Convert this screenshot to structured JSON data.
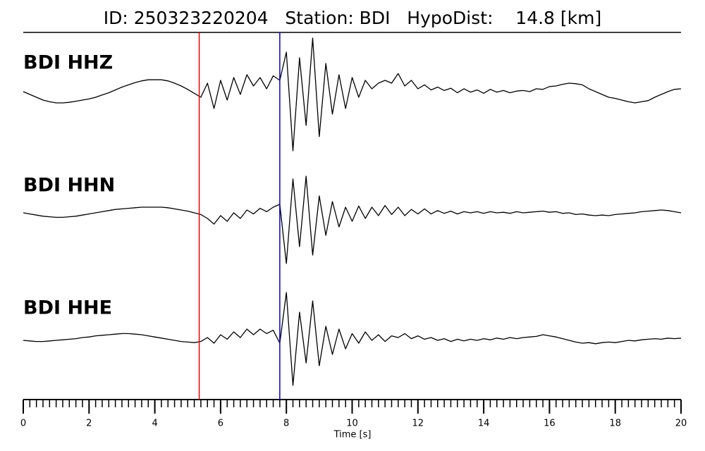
{
  "chart_data": {
    "type": "line",
    "title": "ID: 250323220204   Station: BDI   HypoDist:    14.8 [km]",
    "xlabel": "Time [s]",
    "xlim": [
      0,
      20
    ],
    "xticks": [
      0,
      2,
      4,
      6,
      8,
      10,
      12,
      14,
      16,
      18,
      20
    ],
    "xminorticks": [
      0,
      0.2,
      0.4,
      0.6,
      0.8,
      1,
      1.2,
      1.4,
      1.6,
      1.8,
      2,
      2.2,
      2.4,
      2.6,
      2.8,
      3,
      3.2,
      3.4,
      3.6,
      3.8,
      4,
      4.2,
      4.4,
      4.6,
      4.8,
      5,
      5.2,
      5.4,
      5.6,
      5.8,
      6,
      6.2,
      6.4,
      6.6,
      6.8,
      7,
      7.2,
      7.4,
      7.6,
      7.8,
      8,
      8.2,
      8.4,
      8.6,
      8.8,
      9,
      9.2,
      9.4,
      9.6,
      9.8,
      10,
      10.2,
      10.4,
      10.6,
      10.8,
      11,
      11.2,
      11.4,
      11.6,
      11.8,
      12,
      12.2,
      12.4,
      12.6,
      12.8,
      13,
      13.2,
      13.4,
      13.6,
      13.8,
      14,
      14.2,
      14.4,
      14.6,
      14.8,
      15,
      15.2,
      15.4,
      15.6,
      15.8,
      16,
      16.2,
      16.4,
      16.6,
      16.8,
      17,
      17.2,
      17.4,
      17.6,
      17.8,
      18,
      18.2,
      18.4,
      18.6,
      18.8,
      19,
      19.2,
      19.4,
      19.6,
      19.8,
      20
    ],
    "x": [
      0,
      0.2,
      0.4,
      0.6,
      0.8,
      1,
      1.2,
      1.4,
      1.6,
      1.8,
      2,
      2.2,
      2.4,
      2.6,
      2.8,
      3,
      3.2,
      3.4,
      3.6,
      3.8,
      4,
      4.2,
      4.4,
      4.6,
      4.8,
      5,
      5.2,
      5.4,
      5.6,
      5.8,
      6,
      6.2,
      6.4,
      6.6,
      6.8,
      7,
      7.2,
      7.4,
      7.6,
      7.8,
      8,
      8.2,
      8.4,
      8.6,
      8.8,
      9,
      9.2,
      9.4,
      9.6,
      9.8,
      10,
      10.2,
      10.4,
      10.6,
      10.8,
      11,
      11.2,
      11.4,
      11.6,
      11.8,
      12,
      12.2,
      12.4,
      12.6,
      12.8,
      13,
      13.2,
      13.4,
      13.6,
      13.8,
      14,
      14.2,
      14.4,
      14.6,
      14.8,
      15,
      15.2,
      15.4,
      15.6,
      15.8,
      16,
      16.2,
      16.4,
      16.6,
      16.8,
      17,
      17.2,
      17.4,
      17.6,
      17.8,
      18,
      18.2,
      18.4,
      18.6,
      18.8,
      19,
      19.2,
      19.4,
      19.6,
      19.8,
      20
    ],
    "label_color": "#4c9a00",
    "series": [
      {
        "name": "BDI HHZ",
        "color": "#000000",
        "values": [
          0,
          -0.05,
          -0.1,
          -0.15,
          -0.18,
          -0.2,
          -0.2,
          -0.19,
          -0.17,
          -0.15,
          -0.13,
          -0.1,
          -0.06,
          -0.02,
          0.03,
          0.08,
          0.12,
          0.16,
          0.19,
          0.21,
          0.21,
          0.21,
          0.19,
          0.15,
          0.1,
          0.04,
          -0.03,
          -0.1,
          0.15,
          -0.3,
          0.2,
          -0.15,
          0.25,
          -0.05,
          0.3,
          0.1,
          0.25,
          0.05,
          0.28,
          0.2,
          0.7,
          -1.05,
          0.6,
          -0.6,
          0.95,
          -0.8,
          0.5,
          -0.4,
          0.3,
          -0.3,
          0.25,
          -0.1,
          0.2,
          0.05,
          0.15,
          0.2,
          0.15,
          0.32,
          0.1,
          0.2,
          0.05,
          0.12,
          0.03,
          0.08,
          0.02,
          0.06,
          -0.02,
          0.05,
          -0.01,
          0.03,
          -0.03,
          0.04,
          -0.01,
          0.02,
          -0.02,
          0.01,
          0.02,
          0,
          0.05,
          0.04,
          0.09,
          0.1,
          0.13,
          0.15,
          0.14,
          0.12,
          0.05,
          0,
          -0.05,
          -0.1,
          -0.12,
          -0.15,
          -0.18,
          -0.2,
          -0.18,
          -0.16,
          -0.1,
          -0.05,
          0,
          0.04,
          0.05
        ]
      },
      {
        "name": "BDI HHN",
        "color": "#000000",
        "values": [
          0,
          -0.02,
          -0.04,
          -0.06,
          -0.07,
          -0.08,
          -0.08,
          -0.07,
          -0.06,
          -0.04,
          -0.02,
          0,
          0.02,
          0.04,
          0.06,
          0.07,
          0.08,
          0.09,
          0.1,
          0.1,
          0.1,
          0.1,
          0.09,
          0.07,
          0.05,
          0.03,
          0,
          -0.03,
          -0.1,
          -0.2,
          -0.05,
          -0.15,
          0,
          -0.1,
          0.05,
          -0.02,
          0.08,
          0.02,
          0.1,
          0.15,
          -0.9,
          0.6,
          -0.6,
          0.65,
          -0.75,
          0.3,
          -0.4,
          0.2,
          -0.25,
          0.1,
          -0.15,
          0.12,
          -0.1,
          0.1,
          -0.05,
          0.13,
          -0.03,
          0.1,
          -0.05,
          0.06,
          -0.02,
          0.07,
          -0.02,
          0.04,
          -0.01,
          0.03,
          -0.02,
          0.02,
          0,
          0.02,
          -0.01,
          0.02,
          0,
          0.01,
          -0.01,
          0.02,
          0,
          0.01,
          0.02,
          0.03,
          0.01,
          0.02,
          -0.01,
          0,
          -0.03,
          -0.02,
          -0.04,
          -0.05,
          -0.04,
          -0.05,
          -0.03,
          -0.02,
          -0.01,
          0,
          0.02,
          0.03,
          0.04,
          0.05,
          0.04,
          0.02,
          0
        ]
      },
      {
        "name": "BDI HHE",
        "color": "#000000",
        "values": [
          0,
          -0.01,
          -0.02,
          -0.02,
          -0.01,
          0,
          0.01,
          0.02,
          0.03,
          0.05,
          0.06,
          0.08,
          0.09,
          0.1,
          0.11,
          0.12,
          0.12,
          0.11,
          0.1,
          0.08,
          0.06,
          0.04,
          0.02,
          0,
          -0.02,
          -0.03,
          -0.04,
          -0.02,
          0.05,
          -0.05,
          0.1,
          0.02,
          0.15,
          0.05,
          0.2,
          0.1,
          0.2,
          0.12,
          0.18,
          -0.05,
          0.85,
          -0.8,
          0.5,
          -0.4,
          0.7,
          -0.45,
          0.25,
          -0.25,
          0.2,
          -0.15,
          0.12,
          -0.05,
          0.15,
          0,
          0.1,
          -0.02,
          0.08,
          0.05,
          0.12,
          0.03,
          0.08,
          0.02,
          0.05,
          0,
          0.03,
          -0.02,
          0.02,
          -0.01,
          0.02,
          0,
          0.03,
          0.01,
          0.04,
          0.02,
          0.05,
          0.03,
          0.05,
          0.06,
          0.07,
          0.1,
          0.08,
          0.06,
          0.03,
          0,
          -0.03,
          -0.05,
          -0.04,
          -0.06,
          -0.04,
          -0.03,
          -0.04,
          -0.02,
          0,
          -0.01,
          0.01,
          0.02,
          0.03,
          0.02,
          0.04,
          0.03,
          0.04
        ]
      }
    ],
    "picks": [
      {
        "x": 5.35,
        "color": "#e8000b"
      },
      {
        "x": 7.8,
        "color": "#0000cc"
      }
    ]
  }
}
